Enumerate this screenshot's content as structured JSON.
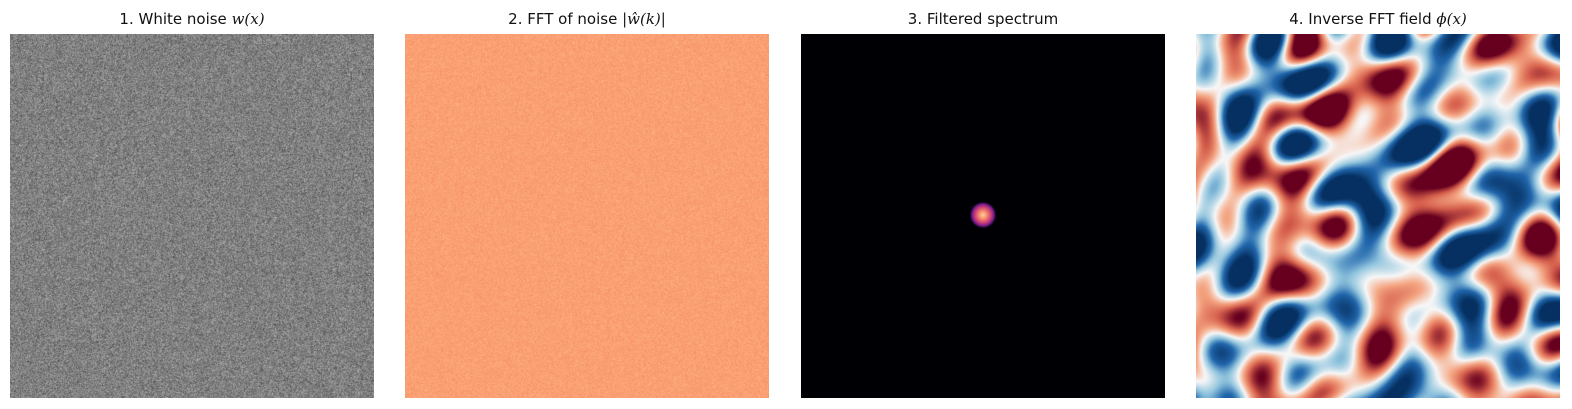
{
  "panels": [
    {
      "title_prefix": "1. White noise ",
      "title_math": "w(x)",
      "title_suffix": "",
      "colormap": "gray"
    },
    {
      "title_prefix": "2. FFT of noise ",
      "title_math": "|ŵ(k)|",
      "title_suffix": "",
      "colormap": "orange"
    },
    {
      "title_prefix": "3. Filtered spectrum",
      "title_math": "",
      "title_suffix": "",
      "colormap": "magma"
    },
    {
      "title_prefix": "4. Inverse FFT field ",
      "title_math": "ϕ(x)",
      "title_suffix": "",
      "colormap": "RdBu"
    }
  ]
}
